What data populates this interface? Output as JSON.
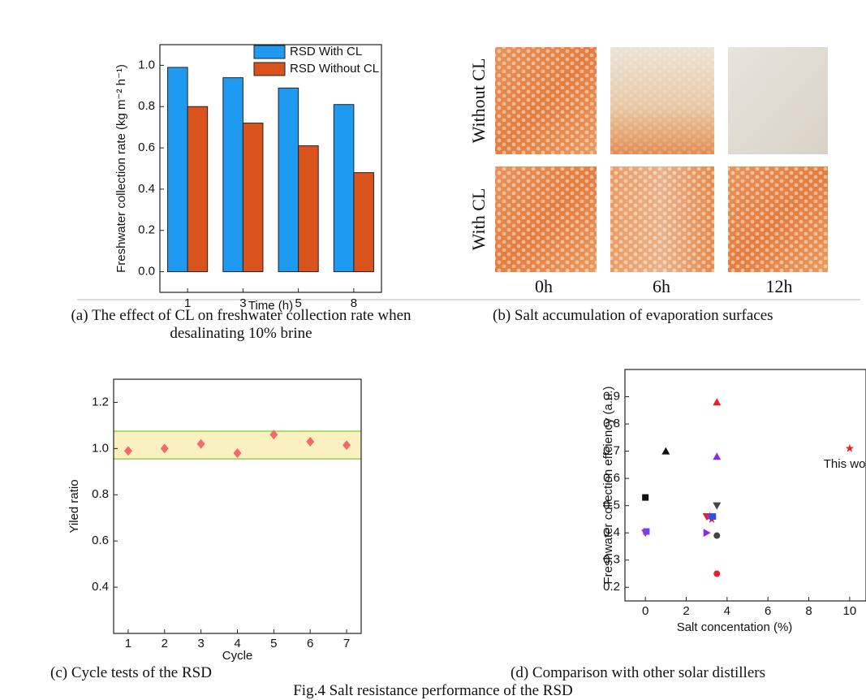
{
  "chart_data": [
    {
      "type": "bar",
      "ylabel": "Freshwater collection rate  (kg m⁻² h⁻¹)",
      "xlabel": "Time (h)",
      "categories": [
        "1",
        "3",
        "5",
        "8"
      ],
      "series": [
        {
          "name": "RSD With CL",
          "color": "#1e9bf0",
          "values": [
            0.99,
            0.94,
            0.89,
            0.81
          ]
        },
        {
          "name": "RSD Without CL",
          "color": "#d9531c",
          "values": [
            0.8,
            0.72,
            0.61,
            0.48
          ]
        }
      ],
      "ylim": [
        -0.1,
        1.1
      ],
      "yticks": [
        {
          "value": 0,
          "label": "0.0"
        },
        0.2,
        0.4,
        0.6,
        0.8,
        {
          "value": 1,
          "label": "1.0"
        }
      ],
      "legend": "upper right"
    },
    {
      "type": "scatter",
      "xlabel": "Cycle",
      "ylabel": "Yiled ratio",
      "x": [
        1,
        2,
        3,
        4,
        5,
        6,
        7
      ],
      "values": [
        0.99,
        1.0,
        1.02,
        0.98,
        1.06,
        1.03,
        1.015
      ],
      "color": "#f26a6a",
      "marker": "diamond",
      "band_range": [
        0.955,
        1.075
      ],
      "band_color": "#fbf0c0",
      "band_edge": "#8fd44a",
      "xlim": [
        0.6,
        7.4
      ],
      "xticks": [
        1,
        2,
        3,
        4,
        5,
        6,
        7
      ],
      "ylim": [
        0.2,
        1.3
      ],
      "yticks": [
        0.4,
        0.6,
        0.8,
        {
          "value": 1,
          "label": "1.0"
        },
        1.2
      ]
    },
    {
      "type": "scatter",
      "xlabel": "Salt concentation (%)",
      "ylabel": "Freshwater collection effciency (a.u.)",
      "x": [
        0,
        0,
        0.05,
        1,
        3.5,
        3.5,
        3.5,
        3.5,
        3.5,
        3.0,
        3.0,
        3.15,
        3.25,
        3.3,
        10
      ],
      "values": [
        0.53,
        0.4,
        0.405,
        0.7,
        0.88,
        0.68,
        0.5,
        0.39,
        0.25,
        0.4,
        0.46,
        0.46,
        0.45,
        0.46,
        0.71
      ],
      "markers": [
        "square",
        "triangle-down",
        "square",
        "triangle-up",
        "triangle-up",
        "triangle-up",
        "triangle-down",
        "circle",
        "circle",
        "triangle-right",
        "triangle-down",
        "star",
        "star",
        "square",
        "star"
      ],
      "colors": [
        "#111111",
        "#e8202a",
        "#7a3cf0",
        "#111111",
        "#e8202a",
        "#8a2be2",
        "#444444",
        "#444444",
        "#e8202a",
        "#8a2be2",
        "#e8202a",
        "#7a3cf0",
        "#e8202a",
        "#3050e0",
        "#e8202a"
      ],
      "annotation": "This work",
      "annotation_color": "#e04a1a",
      "xlim": [
        -1,
        10.8
      ],
      "xticks": [
        0,
        2,
        4,
        6,
        8,
        10
      ],
      "ylim": [
        0.15,
        1.0
      ],
      "yticks": [
        0.2,
        0.3,
        0.4,
        0.5,
        0.6,
        0.7,
        0.8,
        0.9
      ]
    }
  ],
  "photo_panel": {
    "row_labels": [
      "Without CL",
      "With CL"
    ],
    "column_labels": [
      "0h",
      "6h",
      "12h"
    ]
  },
  "captions": [
    "(a) The effect of CL on freshwater collection rate when desalinating 10% brine",
    "(b) Salt accumulation of evaporation surfaces",
    "(c) Cycle tests of the RSD",
    "(d) Comparison with other solar distillers"
  ],
  "figure_caption": "Fig.4 Salt resistance performance of the RSD"
}
